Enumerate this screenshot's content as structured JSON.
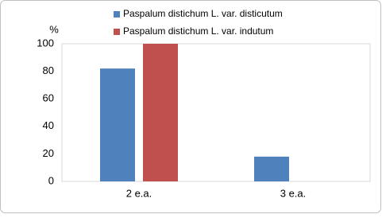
{
  "chart_data": {
    "type": "bar",
    "y_label": "%",
    "categories": [
      "2 e.a.",
      "3 e.a."
    ],
    "series": [
      {
        "name": "Paspalum distichum L. var. disticutum",
        "color": "#4f81bd",
        "values": [
          82,
          18
        ]
      },
      {
        "name": "Paspalum distichum L. var. indutum",
        "color": "#c0504d",
        "values": [
          100,
          0
        ]
      }
    ],
    "ylim": [
      0,
      100
    ],
    "yticks": [
      0,
      20,
      40,
      60,
      80,
      100
    ],
    "grid": false,
    "legend": "top"
  }
}
